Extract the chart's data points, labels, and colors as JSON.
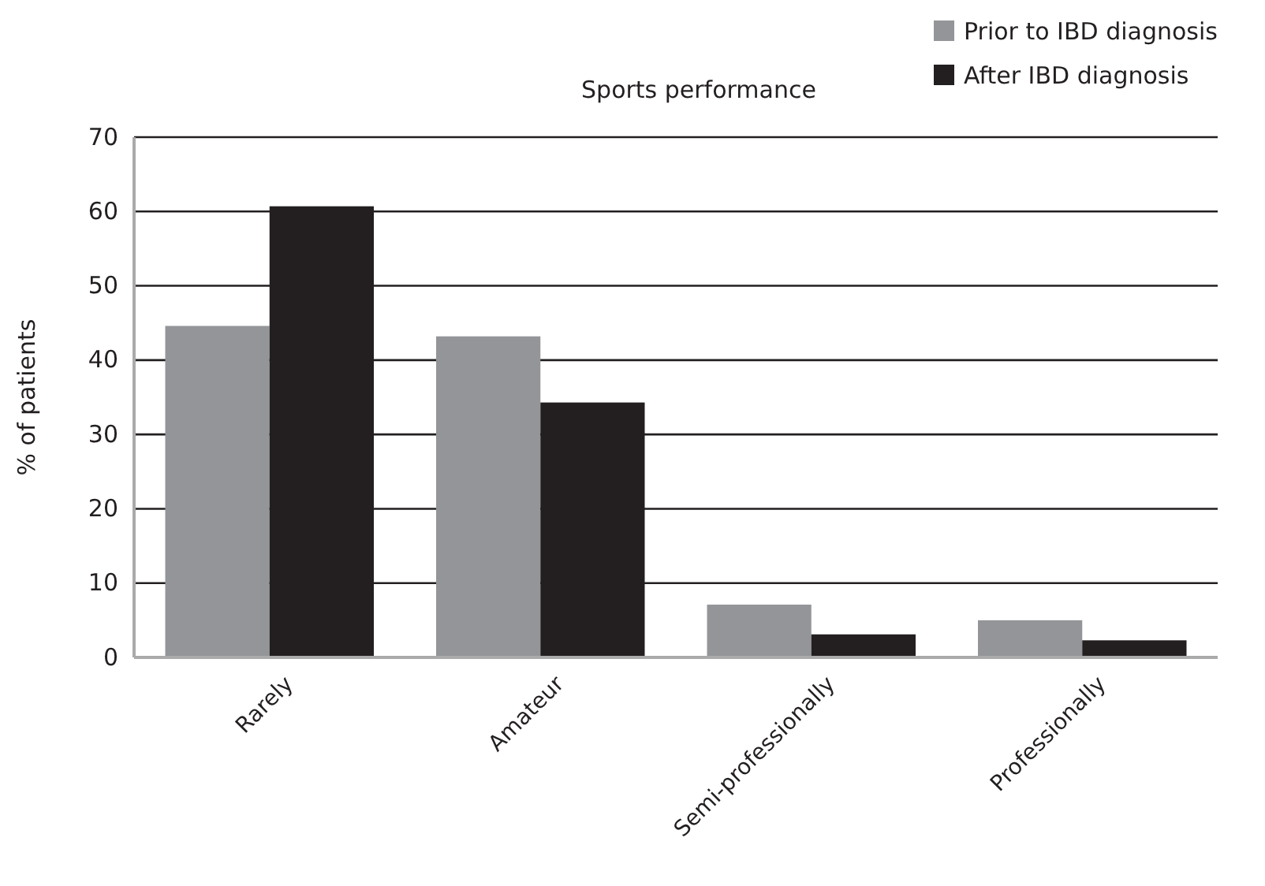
{
  "chart_data": {
    "type": "bar",
    "title": "Sports performance",
    "ylabel": "% of patients",
    "categories": [
      "Rarely",
      "Amateur",
      "Semi-professionally",
      "Professionally"
    ],
    "series": [
      {
        "name": "Prior to IBD diagnosis",
        "color": "#939598",
        "values": [
          44.6,
          43.2,
          7.1,
          5.0
        ]
      },
      {
        "name": "After IBD diagnosis",
        "color": "#231f20",
        "values": [
          60.7,
          34.3,
          3.1,
          2.3
        ]
      }
    ],
    "ylim": [
      0,
      70
    ],
    "yticks": [
      0,
      10,
      20,
      30,
      40,
      50,
      60,
      70
    ],
    "grid": "y",
    "legend": "top right"
  }
}
